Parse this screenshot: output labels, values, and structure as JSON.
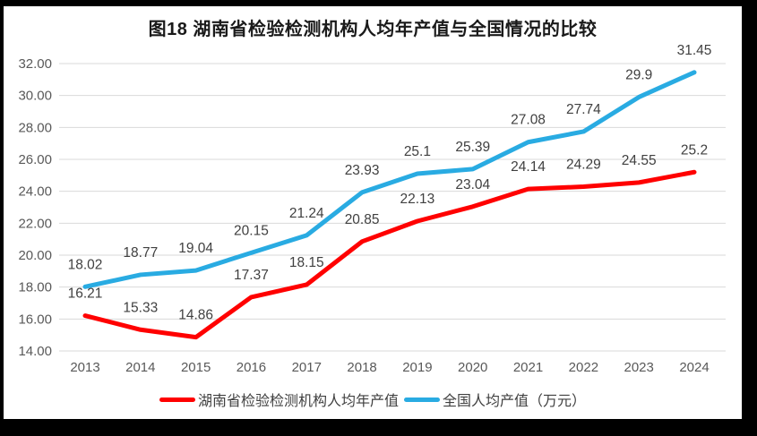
{
  "chart_data": {
    "type": "line",
    "title": "图18 湖南省检验检测机构人均年产值与全国情况的比较",
    "categories": [
      "2013",
      "2014",
      "2015",
      "2016",
      "2017",
      "2018",
      "2019",
      "2020",
      "2021",
      "2022",
      "2023",
      "2024"
    ],
    "series": [
      {
        "name": "湖南省检验检测机构人均年产值",
        "color": "#FF0000",
        "values": [
          16.21,
          15.33,
          14.86,
          17.37,
          18.15,
          20.85,
          22.13,
          23.04,
          24.14,
          24.29,
          24.55,
          25.2
        ]
      },
      {
        "name": "全国人均产值（万元）",
        "color": "#29ABE2",
        "values": [
          18.02,
          18.77,
          19.04,
          20.15,
          21.24,
          23.93,
          25.1,
          25.39,
          27.08,
          27.74,
          29.9,
          31.45
        ]
      }
    ],
    "xlabel": "",
    "ylabel": "",
    "ylim": [
      14,
      32
    ],
    "yticks": [
      "14.00",
      "16.00",
      "18.00",
      "20.00",
      "22.00",
      "24.00",
      "26.00",
      "28.00",
      "30.00",
      "32.00"
    ],
    "grid": true,
    "legend_position": "bottom",
    "data_labels": true,
    "colors": {
      "gridline": "#D9D9D9",
      "axis_text": "#595959",
      "data_label_text": "#404040",
      "title_text": "#1a1a1a",
      "plot_background": "#FFFFFF",
      "outer_frame": "#000000"
    }
  }
}
